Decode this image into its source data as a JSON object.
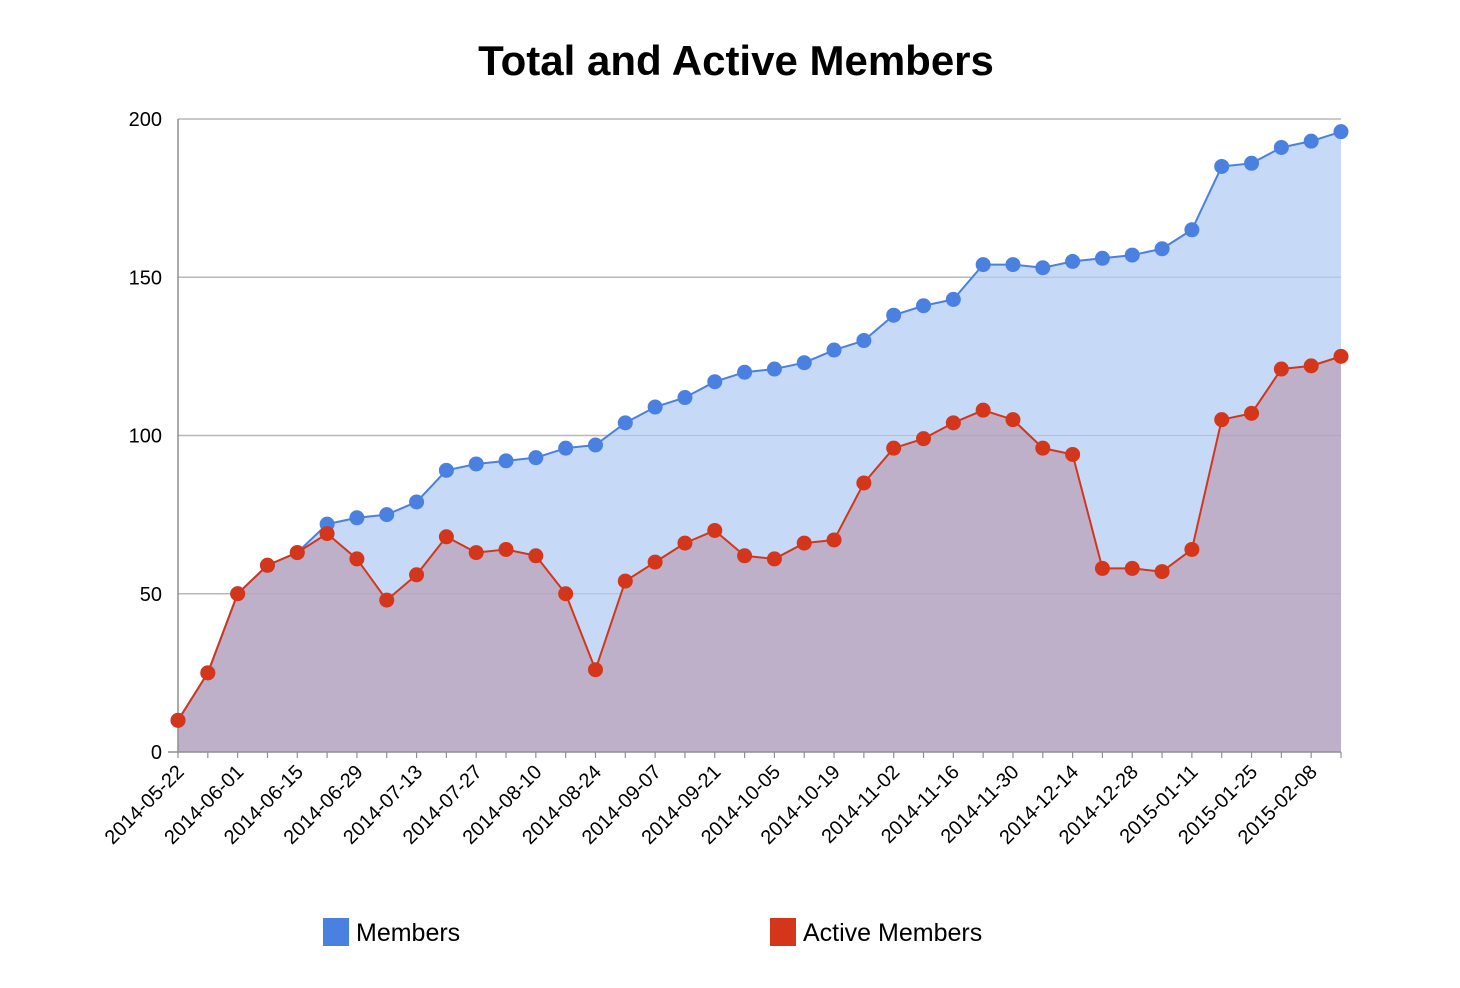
{
  "colors": {
    "members": "#4a80e0",
    "members_area": "#c6d9f7",
    "active_members": "#d3361a",
    "active_area": "#bfb0ca",
    "grid": "#c6c6c6",
    "axis": "#8f8f8f"
  },
  "chart_data": {
    "type": "area",
    "title": "Total and Active Members",
    "xlabel": "",
    "ylabel": "",
    "ylim": [
      0,
      200
    ],
    "y_ticks": [
      0,
      50,
      100,
      150,
      200
    ],
    "grid": true,
    "legend_position": "bottom",
    "x": [
      "2014-05-22",
      "2014-05-27",
      "2014-06-01",
      "2014-06-08",
      "2014-06-15",
      "2014-06-22",
      "2014-06-29",
      "2014-07-06",
      "2014-07-13",
      "2014-07-20",
      "2014-07-27",
      "2014-08-03",
      "2014-08-10",
      "2014-08-17",
      "2014-08-24",
      "2014-08-31",
      "2014-09-07",
      "2014-09-14",
      "2014-09-21",
      "2014-09-28",
      "2014-10-05",
      "2014-10-12",
      "2014-10-19",
      "2014-10-26",
      "2014-11-02",
      "2014-11-09",
      "2014-11-16",
      "2014-11-23",
      "2014-11-30",
      "2014-12-07",
      "2014-12-14",
      "2014-12-21",
      "2014-12-28",
      "2015-01-04",
      "2015-01-11",
      "2015-01-18",
      "2015-01-25",
      "2015-02-01",
      "2015-02-08",
      "2015-02-15"
    ],
    "x_tick_labels": [
      {
        "index": 0,
        "label": "2014-05-22"
      },
      {
        "index": 2,
        "label": "2014-06-01"
      },
      {
        "index": 4,
        "label": "2014-06-15"
      },
      {
        "index": 6,
        "label": "2014-06-29"
      },
      {
        "index": 8,
        "label": "2014-07-13"
      },
      {
        "index": 10,
        "label": "2014-07-27"
      },
      {
        "index": 12,
        "label": "2014-08-10"
      },
      {
        "index": 14,
        "label": "2014-08-24"
      },
      {
        "index": 16,
        "label": "2014-09-07"
      },
      {
        "index": 18,
        "label": "2014-09-21"
      },
      {
        "index": 20,
        "label": "2014-10-05"
      },
      {
        "index": 22,
        "label": "2014-10-19"
      },
      {
        "index": 24,
        "label": "2014-11-02"
      },
      {
        "index": 26,
        "label": "2014-11-16"
      },
      {
        "index": 28,
        "label": "2014-11-30"
      },
      {
        "index": 30,
        "label": "2014-12-14"
      },
      {
        "index": 32,
        "label": "2014-12-28"
      },
      {
        "index": 34,
        "label": "2015-01-11"
      },
      {
        "index": 36,
        "label": "2015-01-25"
      },
      {
        "index": 38,
        "label": "2015-02-08"
      }
    ],
    "series": [
      {
        "name": "Members",
        "color": "#4a80e0",
        "values": [
          10,
          25,
          50,
          59,
          63,
          72,
          74,
          75,
          79,
          89,
          91,
          92,
          93,
          96,
          97,
          104,
          109,
          112,
          117,
          120,
          121,
          123,
          127,
          130,
          138,
          141,
          143,
          154,
          154,
          153,
          155,
          156,
          157,
          159,
          165,
          185,
          186,
          191,
          193,
          196
        ]
      },
      {
        "name": "Active Members",
        "color": "#d3361a",
        "values": [
          10,
          25,
          50,
          59,
          63,
          69,
          61,
          48,
          56,
          68,
          63,
          64,
          62,
          50,
          26,
          54,
          60,
          66,
          70,
          62,
          61,
          66,
          67,
          85,
          96,
          99,
          104,
          108,
          105,
          96,
          94,
          58,
          58,
          57,
          64,
          105,
          107,
          121,
          122,
          125
        ]
      }
    ]
  }
}
